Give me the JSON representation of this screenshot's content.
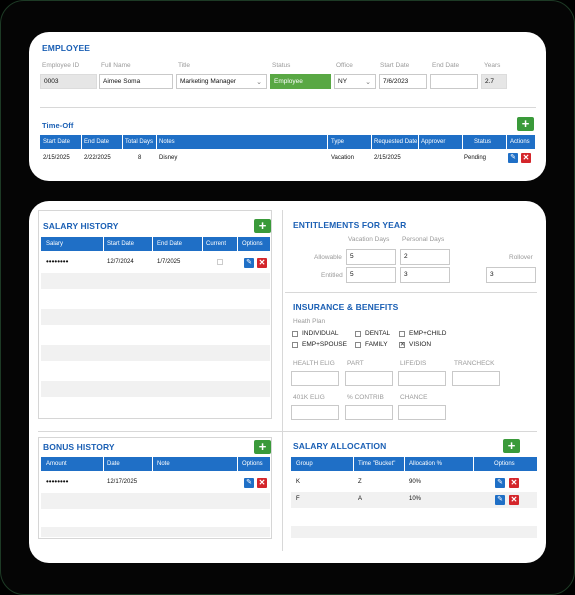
{
  "employee": {
    "title": "EMPLOYEE",
    "labels": {
      "employee_id": "Employee ID",
      "full_name": "Full Name",
      "title": "Title",
      "status": "Status",
      "office": "Office",
      "start_date": "Start Date",
      "end_date": "End Date",
      "years": "Years"
    },
    "values": {
      "employee_id": "0003",
      "full_name": "Aimee Soma",
      "title": "Marketing Manager",
      "status": "Employee",
      "office": "NY",
      "start_date": "7/6/2023",
      "end_date": "",
      "years": "2.7"
    }
  },
  "time_off": {
    "title": "Time-Off",
    "columns": [
      "Start Date",
      "End Date",
      "Total Days",
      "Notes",
      "Type",
      "Requested Date",
      "Approver",
      "Status",
      "Actions"
    ],
    "rows": [
      {
        "start": "2/15/2025",
        "end": "2/22/2025",
        "days": "8",
        "notes": "Disney",
        "type": "Vacation",
        "requested": "2/15/2025",
        "approver": "",
        "status": "Pending"
      }
    ]
  },
  "salary_history": {
    "title": "SALARY HISTORY",
    "columns": [
      "Salary",
      "Start Date",
      "End Date",
      "Current",
      "Options"
    ],
    "rows": [
      {
        "salary": "••••••••",
        "start": "12/7/2024",
        "end": "1/7/2025",
        "current": false
      }
    ]
  },
  "bonus_history": {
    "title": "BONUS HISTORY",
    "columns": [
      "Amount",
      "Date",
      "Note",
      "Options"
    ],
    "rows": [
      {
        "amount": "••••••••",
        "date": "12/17/2025",
        "note": ""
      }
    ]
  },
  "entitlements": {
    "title": "ENTITLEMENTS FOR YEAR",
    "col_vacation": "Vacation Days",
    "col_personal": "Personal Days",
    "col_rollover": "Rollover",
    "row_allowable": "Allowable",
    "row_entitled": "Entitled",
    "allowable_vacation": "5",
    "allowable_personal": "2",
    "entitled_vacation": "5",
    "entitled_personal": "3",
    "rollover": "3"
  },
  "insurance": {
    "title": "INSURANCE & BENEFITS",
    "health_plan_label": "Heath Plan",
    "plans": [
      {
        "label": "INDIVIDUAL",
        "checked": false
      },
      {
        "label": "DENTAL",
        "checked": false
      },
      {
        "label": "EMP+CHILD",
        "checked": false
      },
      {
        "label": "EMP+SPOUSE",
        "checked": false
      },
      {
        "label": "FAMILY",
        "checked": false
      },
      {
        "label": "VISION",
        "checked": true
      }
    ],
    "fields": [
      "HEALTH ELIG",
      "PART",
      "LIFE/DIS",
      "TRANCHECK",
      "401K ELIG",
      "% CONTRIB",
      "CHANCE"
    ]
  },
  "salary_allocation": {
    "title": "SALARY ALLOCATION",
    "columns": [
      "Group",
      "Time \"Bucket\"",
      "Allocation %",
      "Options"
    ],
    "rows": [
      {
        "group": "K",
        "bucket": "Z",
        "allocation": "90%"
      },
      {
        "group": "F",
        "bucket": "A",
        "allocation": "10%"
      }
    ]
  },
  "icons": {
    "add": "+",
    "edit": "✎",
    "delete": "✕",
    "check": "✕",
    "caret": "⌄"
  },
  "colors": {
    "accent_blue": "#1f6fc6",
    "add_green": "#3a9a3a",
    "status_green": "#59a844",
    "delete_red": "#d4262b"
  }
}
